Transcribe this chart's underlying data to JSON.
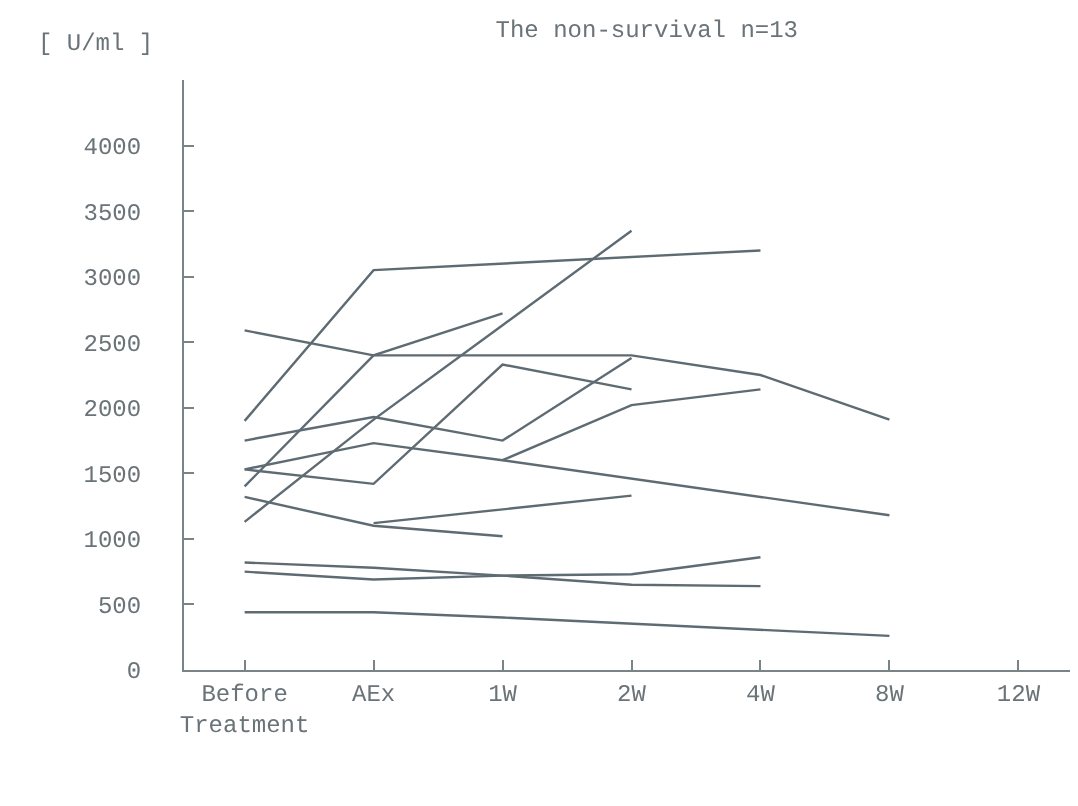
{
  "chart_data": {
    "type": "line",
    "title": "The non-survival n=13",
    "ylabel": "[ U/ml ]",
    "categories": [
      "Before\nTreatment",
      "AEx",
      "1W",
      "2W",
      "4W",
      "8W",
      "12W"
    ],
    "series": [
      {
        "color": "#5f6b73",
        "values": [
          1900,
          3050,
          null,
          null,
          3200,
          null,
          null
        ]
      },
      {
        "color": "#5f6b73",
        "values": [
          2590,
          2400,
          null,
          2400,
          2250,
          1910,
          null
        ]
      },
      {
        "color": "#5f6b73",
        "values": [
          1130,
          1910,
          2630,
          3350,
          null,
          null,
          null
        ]
      },
      {
        "color": "#5f6b73",
        "values": [
          1400,
          2400,
          2720,
          null,
          null,
          null,
          null
        ]
      },
      {
        "color": "#5f6b73",
        "values": [
          1750,
          1930,
          1750,
          2380,
          null,
          null,
          null
        ]
      },
      {
        "color": "#5f6b73",
        "values": [
          1530,
          1420,
          2330,
          2140,
          null,
          null,
          null
        ]
      },
      {
        "color": "#5f6b73",
        "values": [
          1530,
          1730,
          1600,
          null,
          null,
          1180,
          null
        ]
      },
      {
        "color": "#5f6b73",
        "values": [
          null,
          null,
          1600,
          2020,
          2140,
          null,
          null
        ]
      },
      {
        "color": "#5f6b73",
        "values": [
          1320,
          1100,
          1020,
          null,
          null,
          null,
          null
        ]
      },
      {
        "color": "#5f6b73",
        "values": [
          null,
          1120,
          null,
          1330,
          null,
          null,
          null
        ]
      },
      {
        "color": "#5f6b73",
        "values": [
          820,
          780,
          720,
          650,
          640,
          null,
          null
        ]
      },
      {
        "color": "#5f6b73",
        "values": [
          750,
          690,
          720,
          730,
          860,
          null,
          null
        ]
      },
      {
        "color": "#5f6b73",
        "values": [
          440,
          440,
          400,
          null,
          null,
          260,
          null
        ]
      }
    ],
    "ylim": [
      0,
      4500
    ],
    "yticks": [
      0,
      500,
      1000,
      1500,
      2000,
      2500,
      3000,
      3500,
      4000
    ],
    "grid": false,
    "marker": "none",
    "line_style": "solid"
  }
}
